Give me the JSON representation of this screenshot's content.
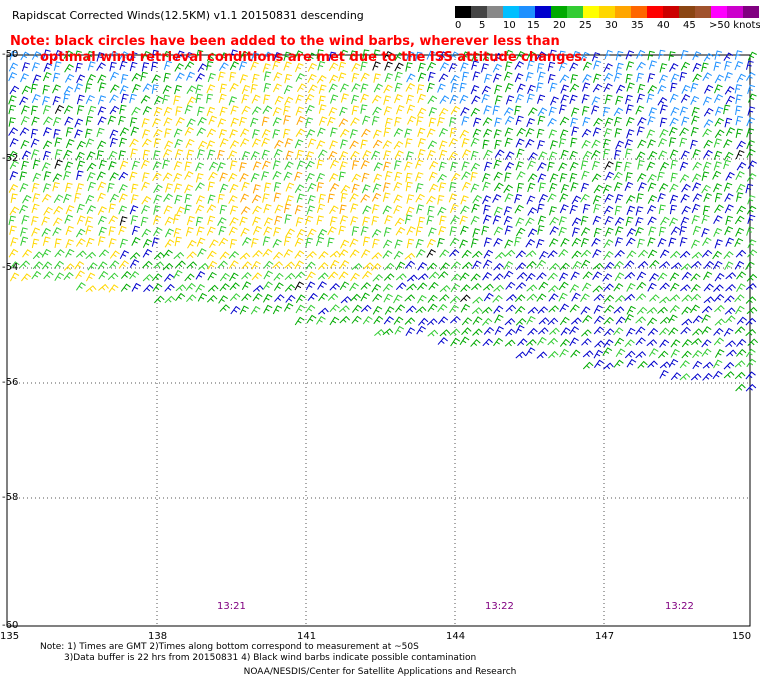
{
  "title": "Rapidscat Corrected Winds(12.5KM) v1.1 20150831 descending",
  "note": {
    "line1": "Note: black circles have been added to the wind barbs, wherever less than",
    "line2": "optimal wind retrieval conditions are met due to the ISS attitude changes."
  },
  "legend": {
    "labels": [
      "0",
      "5",
      "10",
      "15",
      "20",
      "25",
      "30",
      "35",
      "40",
      "45",
      ">50 knots"
    ],
    "colors": [
      "#000000",
      "#444444",
      "#888888",
      "#00bfff",
      "#1e90ff",
      "#0000cd",
      "#00aa00",
      "#33cc33",
      "#ffff00",
      "#ffd700",
      "#ffa500",
      "#ff6600",
      "#ff0000",
      "#cc0000",
      "#8b4513",
      "#a0522d",
      "#ff00ff",
      "#cc00cc",
      "#800080"
    ]
  },
  "map": {
    "lat_labels": [
      "-50",
      "-52",
      "-54",
      "-56",
      "-58",
      "-60"
    ],
    "lon_labels": [
      "135",
      "138",
      "141",
      "144",
      "147",
      "150"
    ],
    "time_labels": [
      "13:21",
      "13:22",
      "13:22"
    ],
    "barb_colors": {
      "calm": "#000000",
      "light": "#1e90ff",
      "moderate": "#0000cd",
      "fresh": "#00aa00",
      "strong": "#33cc33",
      "gale": "#ffd700",
      "storm": "#ffa500"
    }
  },
  "footnote": {
    "line1": "Note: 1) Times are GMT 2)Times along bottom correspond to measurement at ~50S",
    "line2": "3)Data buffer is 22 hrs from 20150831 4) Black wind barbs indicate possible contamination"
  },
  "credit": "NOAA/NESDIS/Center for Satellite Applications and Research"
}
